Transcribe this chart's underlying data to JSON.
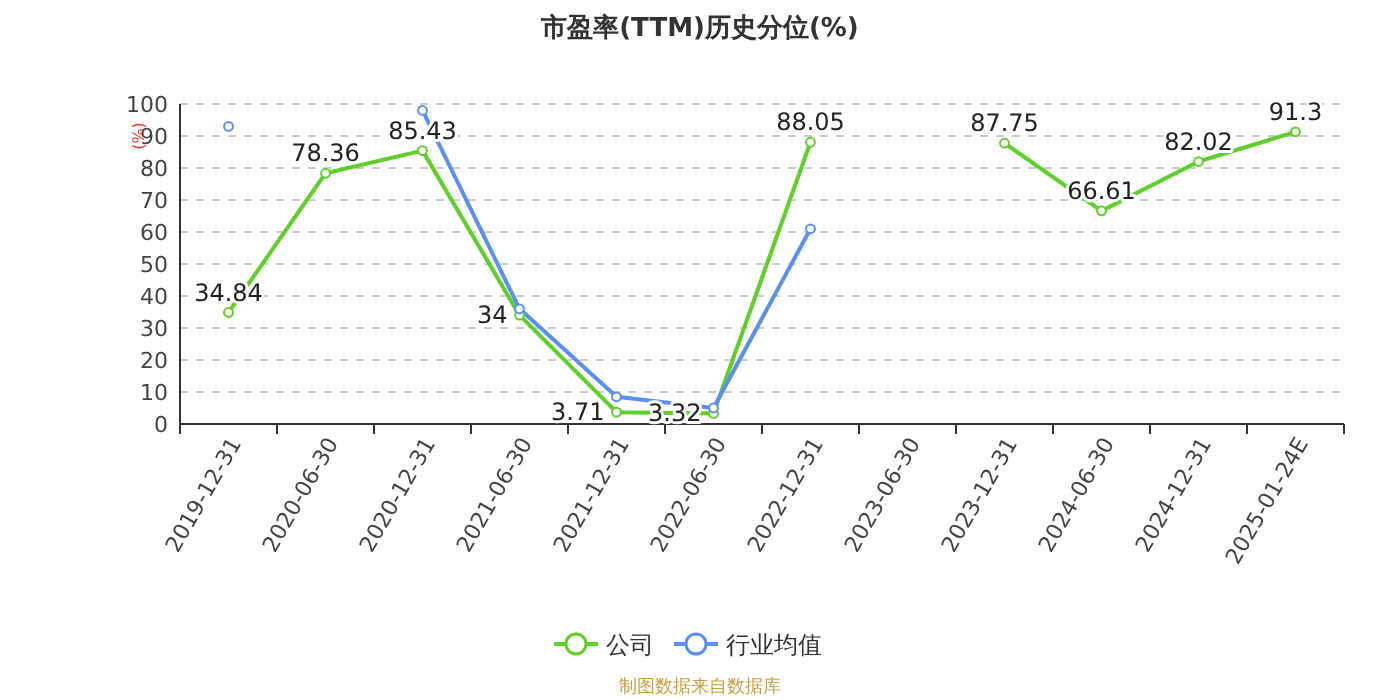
{
  "chart_data": {
    "type": "line",
    "title": "市盈率(TTM)历史分位(%)",
    "ylabel": "(%)",
    "categories": [
      "2019-12-31",
      "2020-06-30",
      "2020-12-31",
      "2021-06-30",
      "2021-12-31",
      "2022-06-30",
      "2022-12-31",
      "2023-06-30",
      "2023-12-31",
      "2024-06-30",
      "2024-12-31",
      "2025-01-24E"
    ],
    "series": [
      {
        "name": "公司",
        "color": "#5fcf2a",
        "values": [
          34.84,
          78.36,
          85.43,
          34,
          3.71,
          3.32,
          88.05,
          null,
          87.75,
          66.61,
          82.02,
          91.3
        ],
        "value_labels": [
          "34.84",
          "78.36",
          "85.43",
          "34",
          "3.71",
          "3.32",
          "88.05",
          null,
          "87.75",
          "66.61",
          "82.02",
          "91.3"
        ]
      },
      {
        "name": "行业均值",
        "color": "#5b8ff0",
        "values": [
          93,
          null,
          98,
          36,
          8.5,
          5,
          61,
          null,
          null,
          null,
          null,
          null
        ]
      }
    ],
    "ylim": [
      0,
      100
    ],
    "yticks": [
      0,
      10,
      20,
      30,
      40,
      50,
      60,
      70,
      80,
      90,
      100
    ],
    "grid": "y",
    "legend": "bottom",
    "marker": "circle",
    "line_style": "solid",
    "annotations": [
      "制图数据来自数据库"
    ]
  }
}
